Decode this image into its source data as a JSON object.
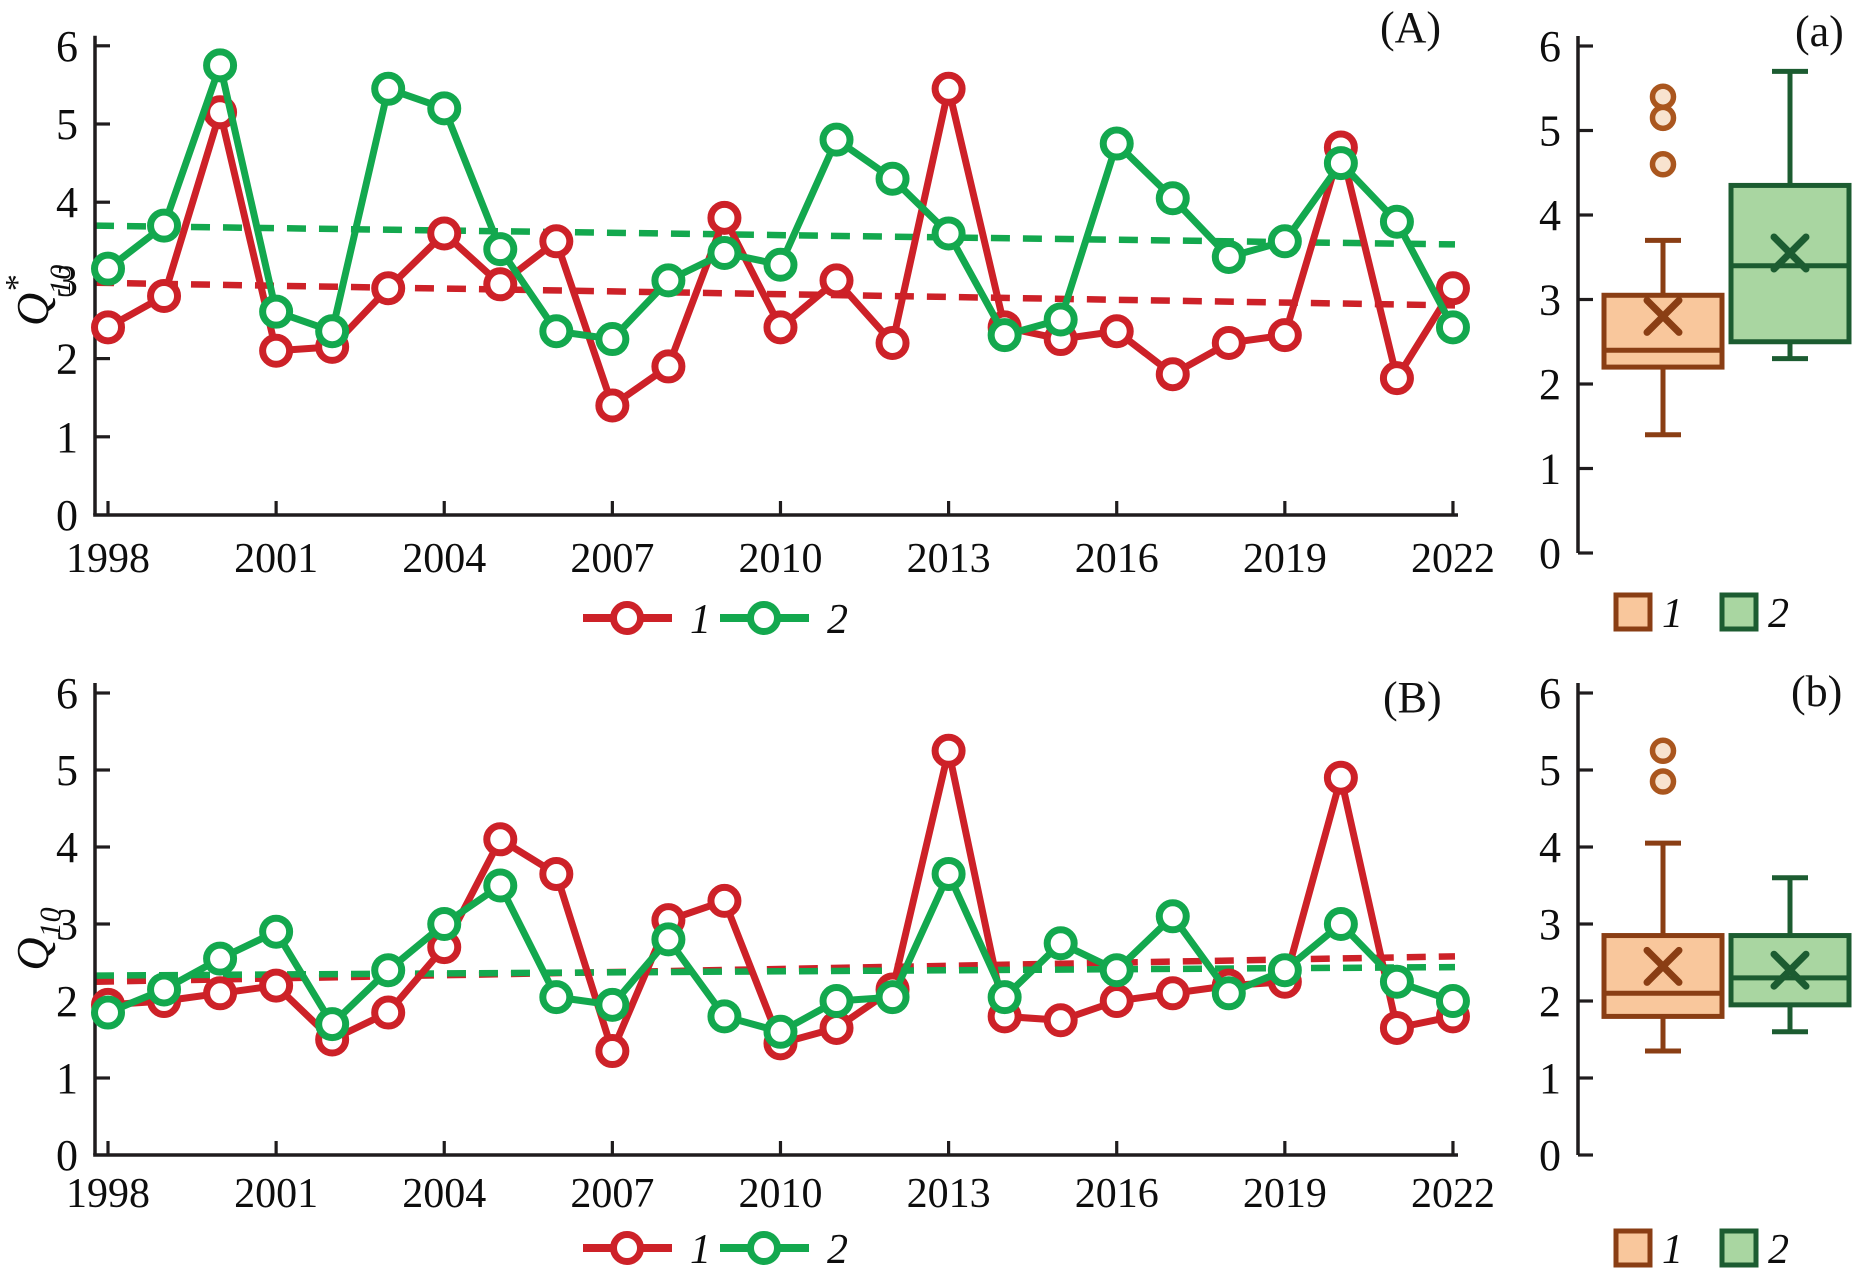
{
  "colors": {
    "red": "#cd2128",
    "green": "#13a84e",
    "axis": "#1f1c1d",
    "text": "#0d0d0d",
    "box1_fill": "#f9c79c",
    "box1_stroke": "#8a3e14",
    "box1_outlier_stroke": "#aa561e",
    "box1_outlier_fill": "#f8e3cf",
    "box2_fill": "#a9d6a1",
    "box2_stroke": "#1c5c31"
  },
  "chart_data": [
    {
      "id": "A",
      "type": "line",
      "panel_label": "(A)",
      "ylabel": {
        "base": "Q",
        "sup": "*",
        "sub": "10"
      },
      "ylim": [
        0,
        6
      ],
      "yticks": [
        0,
        1,
        2,
        3,
        4,
        5,
        6
      ],
      "x": [
        1998,
        1999,
        2000,
        2001,
        2002,
        2003,
        2004,
        2005,
        2006,
        2007,
        2008,
        2009,
        2010,
        2011,
        2012,
        2013,
        2014,
        2015,
        2016,
        2017,
        2018,
        2019,
        2020,
        2021,
        2022
      ],
      "xtick_labels": [
        1998,
        2001,
        2004,
        2007,
        2010,
        2013,
        2016,
        2019,
        2022
      ],
      "series": [
        {
          "name": "1",
          "color": "red",
          "values": [
            2.4,
            2.8,
            5.15,
            2.1,
            2.15,
            2.9,
            3.6,
            2.95,
            3.5,
            1.4,
            1.9,
            3.8,
            2.4,
            3.0,
            2.2,
            5.45,
            2.4,
            2.25,
            2.35,
            1.8,
            2.2,
            2.3,
            4.7,
            1.75,
            2.9
          ]
        },
        {
          "name": "2",
          "color": "green",
          "values": [
            3.15,
            3.7,
            5.75,
            2.6,
            2.35,
            5.45,
            5.2,
            3.4,
            2.35,
            2.25,
            3.0,
            3.35,
            3.2,
            4.8,
            4.3,
            3.6,
            2.3,
            2.5,
            4.75,
            4.05,
            3.3,
            3.5,
            4.5,
            3.75,
            2.4
          ]
        }
      ],
      "trends": [
        {
          "series": "1",
          "color": "red",
          "start": 2.97,
          "end": 2.68
        },
        {
          "series": "2",
          "color": "green",
          "start": 3.7,
          "end": 3.46
        }
      ],
      "legend": [
        "1",
        "2"
      ]
    },
    {
      "id": "a",
      "type": "box",
      "panel_label": "(a)",
      "ylim": [
        0,
        6
      ],
      "yticks": [
        0,
        1,
        2,
        3,
        4,
        5,
        6
      ],
      "boxes": [
        {
          "name": "1",
          "color": "box1",
          "whisker_low": 1.4,
          "q1": 2.2,
          "median": 2.4,
          "q3": 3.05,
          "whisker_high": 3.7,
          "mean": 2.8,
          "outliers": [
            4.6,
            5.15,
            5.4
          ]
        },
        {
          "name": "2",
          "color": "box2",
          "whisker_low": 2.3,
          "q1": 2.5,
          "median": 3.4,
          "q3": 4.35,
          "whisker_high": 5.7,
          "mean": 3.55,
          "outliers": []
        }
      ],
      "legend": [
        "1",
        "2"
      ]
    },
    {
      "id": "B",
      "type": "line",
      "panel_label": "(B)",
      "ylabel": {
        "base": "Q",
        "sup": "",
        "sub": "10"
      },
      "ylim": [
        0,
        6
      ],
      "yticks": [
        0,
        1,
        2,
        3,
        4,
        5,
        6
      ],
      "x": [
        1998,
        1999,
        2000,
        2001,
        2002,
        2003,
        2004,
        2005,
        2006,
        2007,
        2008,
        2009,
        2010,
        2011,
        2012,
        2013,
        2014,
        2015,
        2016,
        2017,
        2018,
        2019,
        2020,
        2021,
        2022
      ],
      "xtick_labels": [
        1998,
        2001,
        2004,
        2007,
        2010,
        2013,
        2016,
        2019,
        2022
      ],
      "series": [
        {
          "name": "1",
          "color": "red",
          "values": [
            1.95,
            2.0,
            2.1,
            2.2,
            1.5,
            1.85,
            2.7,
            4.1,
            3.65,
            1.35,
            3.05,
            3.3,
            1.45,
            1.65,
            2.15,
            5.25,
            1.8,
            1.75,
            2.0,
            2.1,
            2.2,
            2.25,
            4.9,
            1.65,
            1.8
          ]
        },
        {
          "name": "2",
          "color": "green",
          "values": [
            1.85,
            2.15,
            2.55,
            2.9,
            1.7,
            2.4,
            3.0,
            3.5,
            2.05,
            1.95,
            2.8,
            1.8,
            1.6,
            2.0,
            2.05,
            3.65,
            2.05,
            2.75,
            2.4,
            3.1,
            2.1,
            2.4,
            3.0,
            2.25,
            2.0
          ]
        }
      ],
      "trends": [
        {
          "series": "1",
          "color": "red",
          "start": 2.25,
          "end": 2.58
        },
        {
          "series": "2",
          "color": "green",
          "start": 2.33,
          "end": 2.44
        }
      ],
      "legend": [
        "1",
        "2"
      ]
    },
    {
      "id": "b",
      "type": "box",
      "panel_label": "(b)",
      "ylim": [
        0,
        6
      ],
      "yticks": [
        0,
        1,
        2,
        3,
        4,
        5,
        6
      ],
      "boxes": [
        {
          "name": "1",
          "color": "box1",
          "whisker_low": 1.35,
          "q1": 1.8,
          "median": 2.1,
          "q3": 2.85,
          "whisker_high": 4.05,
          "mean": 2.45,
          "outliers": [
            4.85,
            5.25
          ]
        },
        {
          "name": "2",
          "color": "box2",
          "whisker_low": 1.6,
          "q1": 1.95,
          "median": 2.3,
          "q3": 2.85,
          "whisker_high": 3.6,
          "mean": 2.4,
          "outliers": []
        }
      ],
      "legend": [
        "1",
        "2"
      ]
    }
  ]
}
